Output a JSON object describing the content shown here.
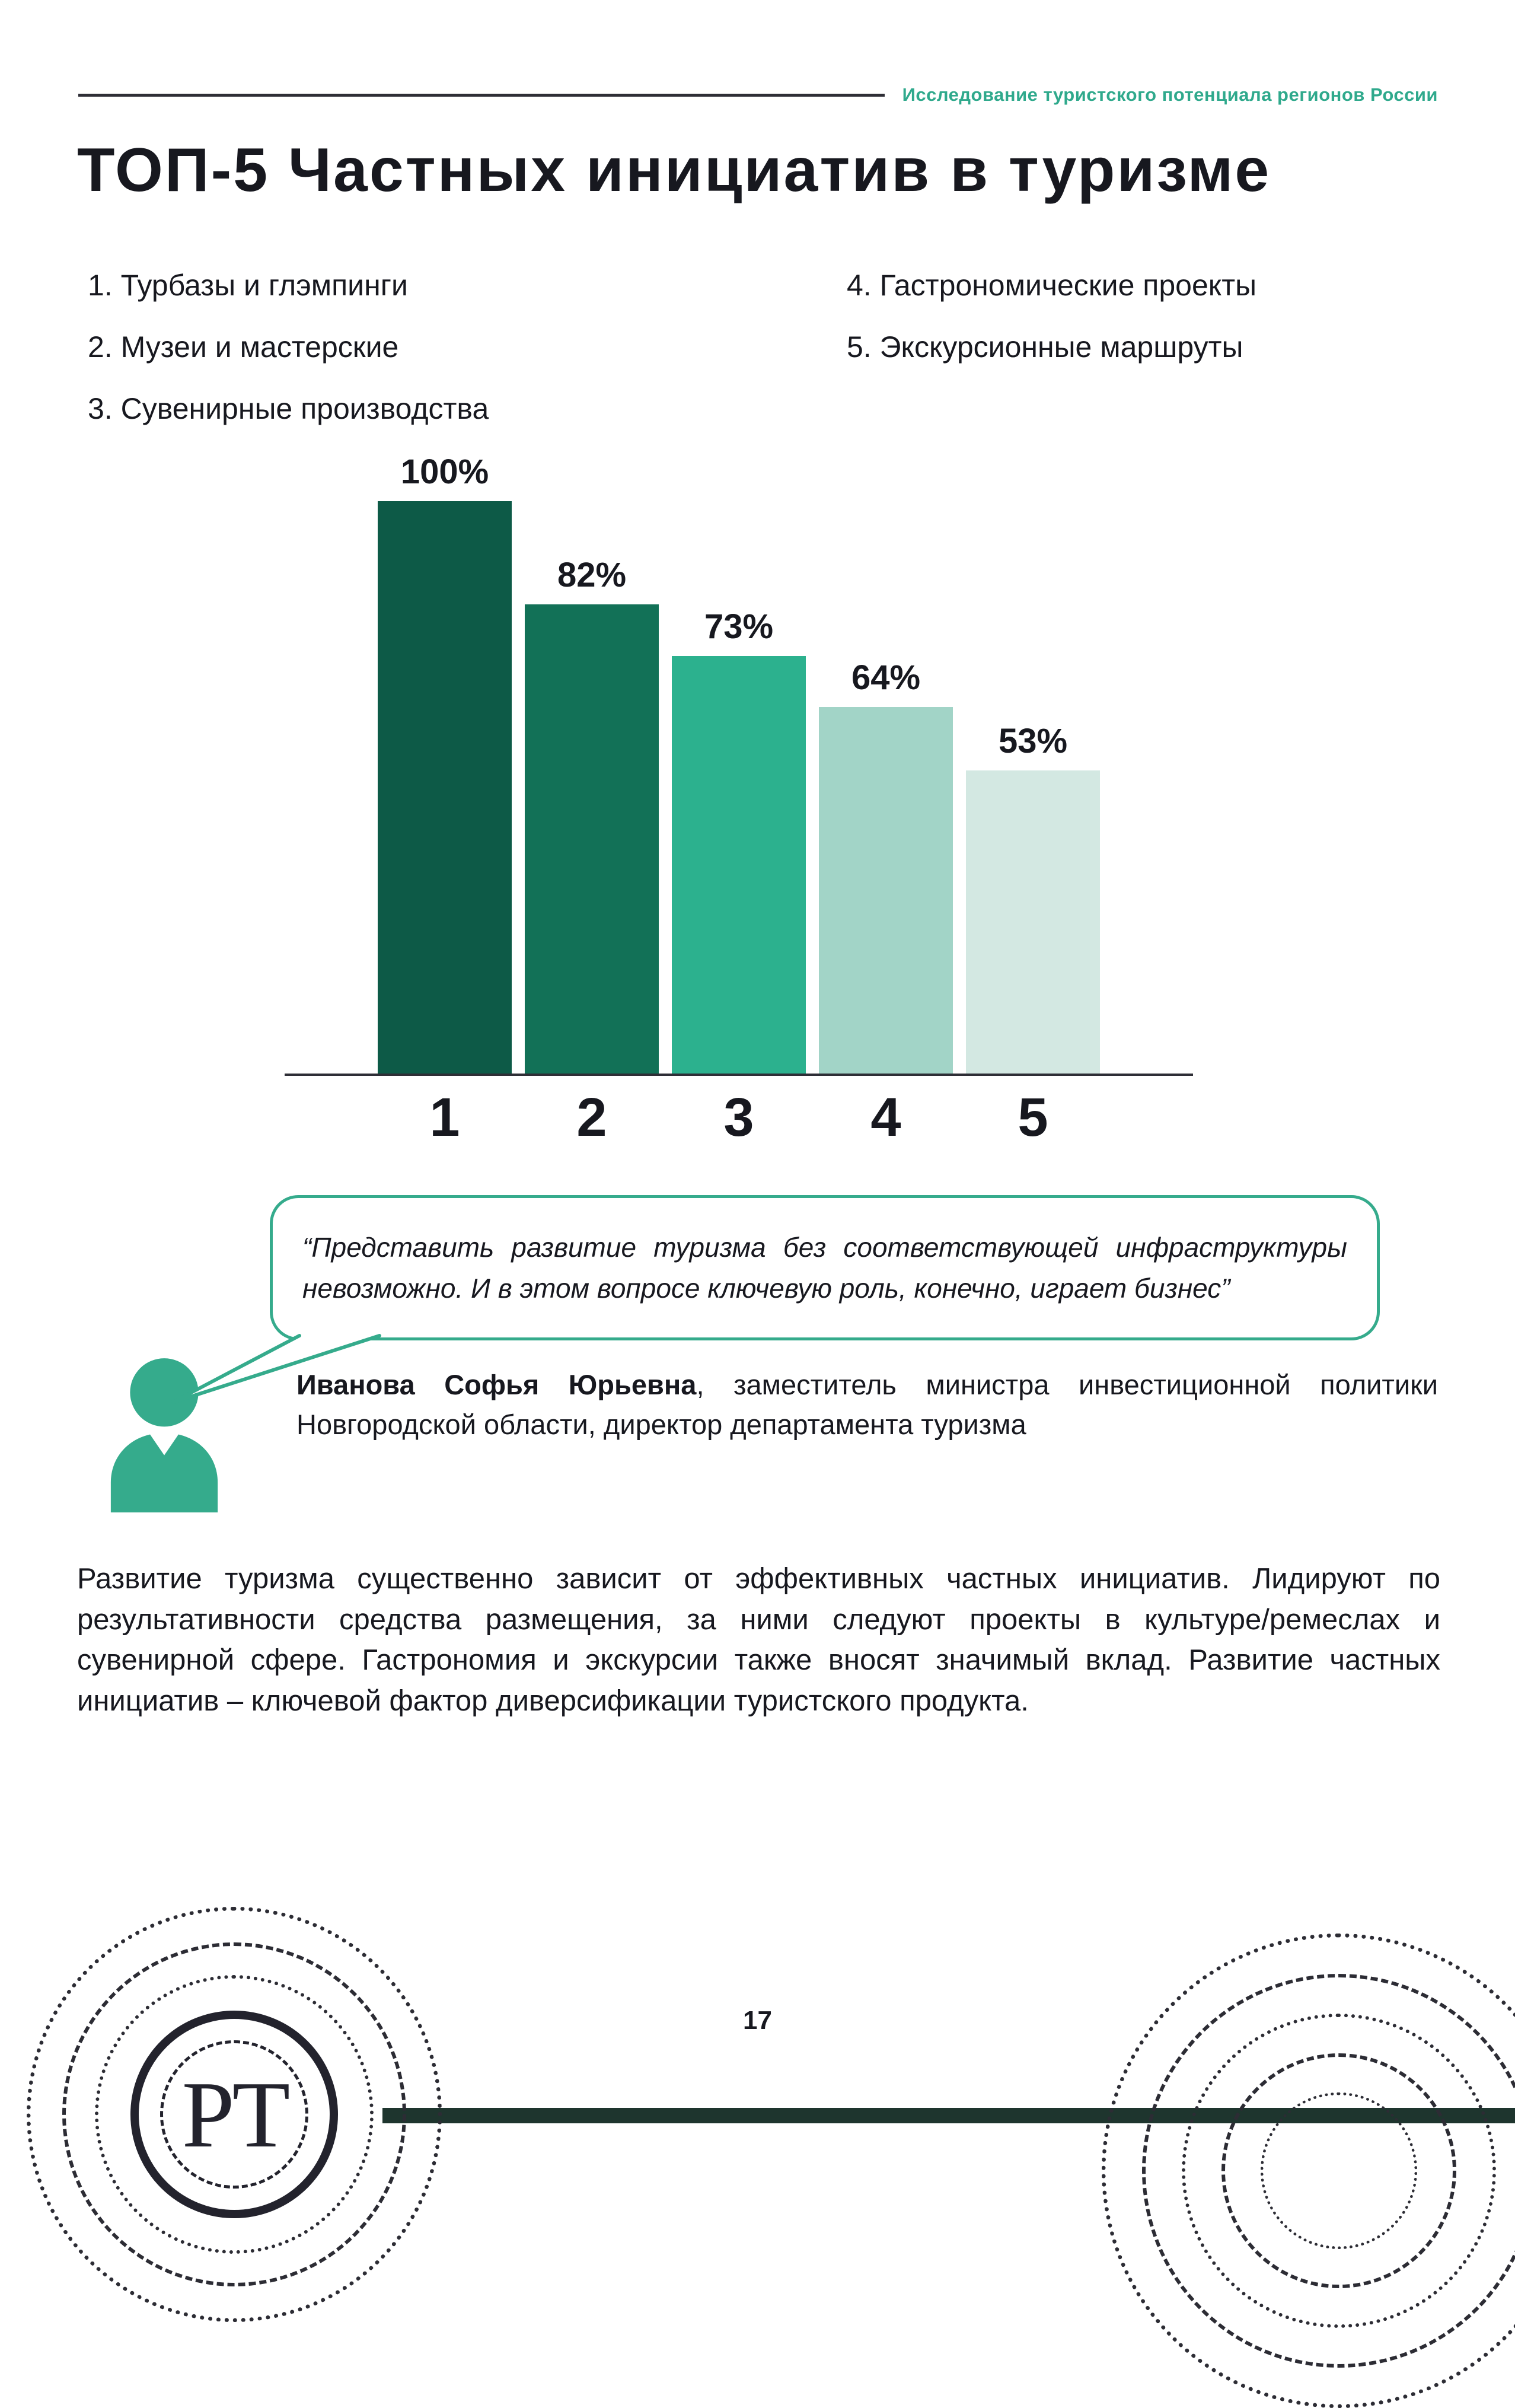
{
  "colors": {
    "accent": "#2fa98c",
    "text": "#17181f",
    "quote_border": "#35ab8c",
    "footer_bar": "#1e352e"
  },
  "header": {
    "label": "Исследование туристского потенциала регионов России"
  },
  "title": "ТОП-5 Частных инициатив в туризме",
  "top_list": {
    "items": [
      "1. Турбазы и глэмпинги",
      "2. Музеи и мастерские",
      "3. Сувенирные производства",
      "4. Гастрономические проекты",
      "5. Экскурсионные маршруты"
    ]
  },
  "chart_data": {
    "type": "bar",
    "categories": [
      "1",
      "2",
      "3",
      "4",
      "5"
    ],
    "values": [
      100,
      82,
      73,
      64,
      53
    ],
    "value_labels": [
      "100%",
      "82%",
      "73%",
      "64%",
      "53%"
    ],
    "bar_colors": [
      "#0d5a47",
      "#127157",
      "#2cb18e",
      "#a2d4c7",
      "#d3e8e2"
    ],
    "title": "",
    "xlabel": "",
    "ylabel": "",
    "ylim": [
      0,
      100
    ],
    "grid": false,
    "legend": "none"
  },
  "quote": {
    "text": "“Представить развитие туризма без соответствующей инфраструктуры невозможно. И в этом вопросе ключевую роль, конечно, играет бизнес”"
  },
  "person": {
    "name": "Иванова Софья Юрьевна",
    "role": ", заместитель министра инвестиционной политики Новгородской области, директор департамента туризма"
  },
  "body_text": "Развитие туризма существенно зависит от эффективных частных инициатив. Лидируют по результативности средства размещения, за ними следуют проекты в культуре/ремеслах и сувенирной сфере. Гастрономия и экскурсии также вносят значимый вклад. Развитие частных инициатив – ключевой фактор диверсификации туристского продукта.",
  "footer": {
    "page_number": "17",
    "logo_text": "РТ"
  }
}
